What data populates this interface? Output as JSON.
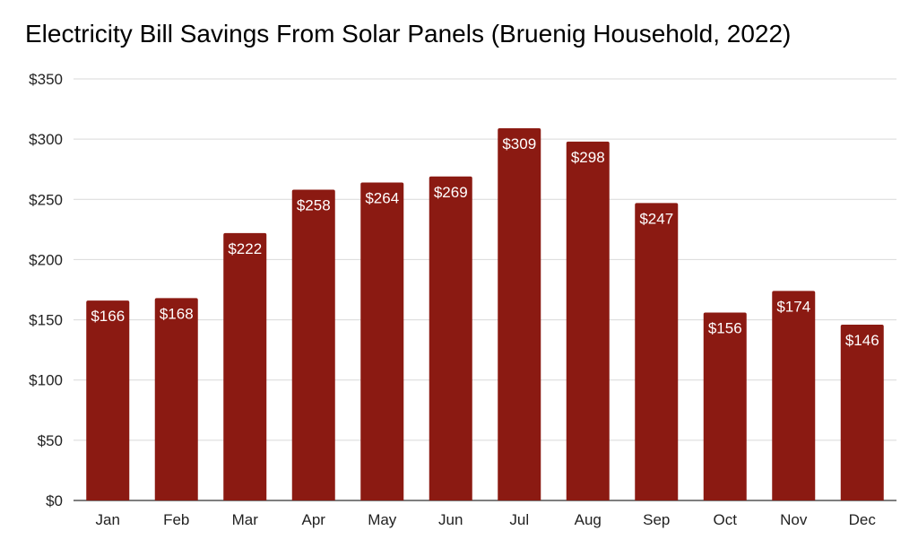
{
  "chart_data": {
    "type": "bar",
    "title": "Electricity Bill Savings From Solar Panels (Bruenig Household, 2022)",
    "xlabel": "",
    "ylabel": "",
    "categories": [
      "Jan",
      "Feb",
      "Mar",
      "Apr",
      "May",
      "Jun",
      "Jul",
      "Aug",
      "Sep",
      "Oct",
      "Nov",
      "Dec"
    ],
    "values": [
      166,
      168,
      222,
      258,
      264,
      269,
      309,
      298,
      247,
      156,
      174,
      146
    ],
    "data_labels": [
      "$166",
      "$168",
      "$222",
      "$258",
      "$264",
      "$269",
      "$309",
      "$298",
      "$247",
      "$156",
      "$174",
      "$146"
    ],
    "ylim": [
      0,
      350
    ],
    "yticks": [
      0,
      50,
      100,
      150,
      200,
      250,
      300,
      350
    ],
    "ytick_labels": [
      "$0",
      "$50",
      "$100",
      "$150",
      "$200",
      "$250",
      "$300",
      "$350"
    ],
    "grid": true,
    "legend": "none",
    "colors": {
      "bar": "#8b1a12",
      "grid": "#d9d9d9",
      "axis": "#333333"
    }
  }
}
